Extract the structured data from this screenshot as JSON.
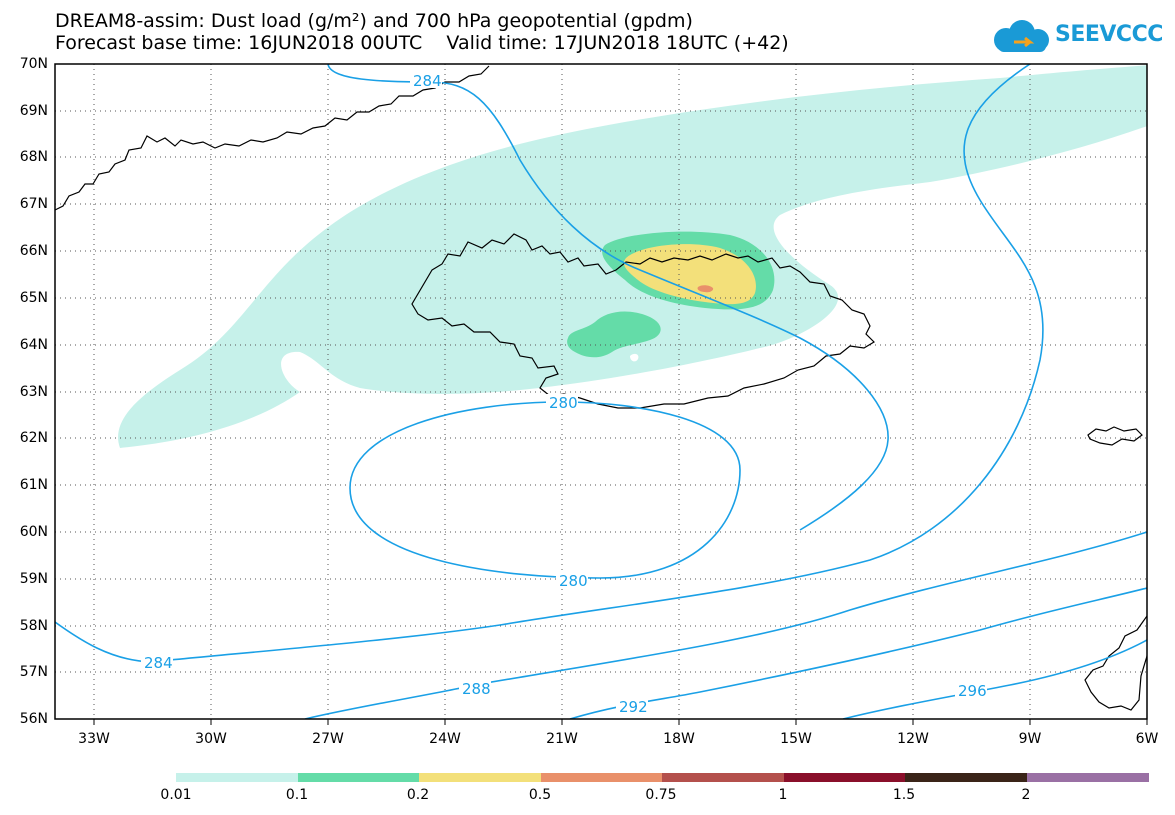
{
  "title": {
    "line1": "DREAM8-assim: Dust load (g/m²) and 700 hPa geopotential (gpdm)",
    "line2": "Forecast base time: 16JUN2018 00UTC    Valid time: 17JUN2018 18UTC (+42)"
  },
  "logo": {
    "text": "SEEVCCC",
    "icon": "cloud-icon"
  },
  "axes": {
    "lat_labels": [
      "70N",
      "69N",
      "68N",
      "67N",
      "66N",
      "65N",
      "64N",
      "63N",
      "62N",
      "61N",
      "60N",
      "59N",
      "58N",
      "57N",
      "56N"
    ],
    "lon_labels": [
      "33W",
      "30W",
      "27W",
      "24W",
      "21W",
      "18W",
      "15W",
      "12W",
      "9W",
      "6W"
    ]
  },
  "contours": {
    "color": "#1aa0e6",
    "labels": [
      "284",
      "280",
      "280",
      "284",
      "288",
      "292",
      "296"
    ]
  },
  "colorbar": {
    "colors": [
      "#c6f1ea",
      "#64dca8",
      "#f3e07a",
      "#e9906a",
      "#b4504c",
      "#8a0f2a",
      "#3a2418",
      "#9a70a4"
    ],
    "labels": [
      "0.01",
      "0.1",
      "0.2",
      "0.5",
      "0.75",
      "1",
      "1.5",
      "2"
    ]
  }
}
